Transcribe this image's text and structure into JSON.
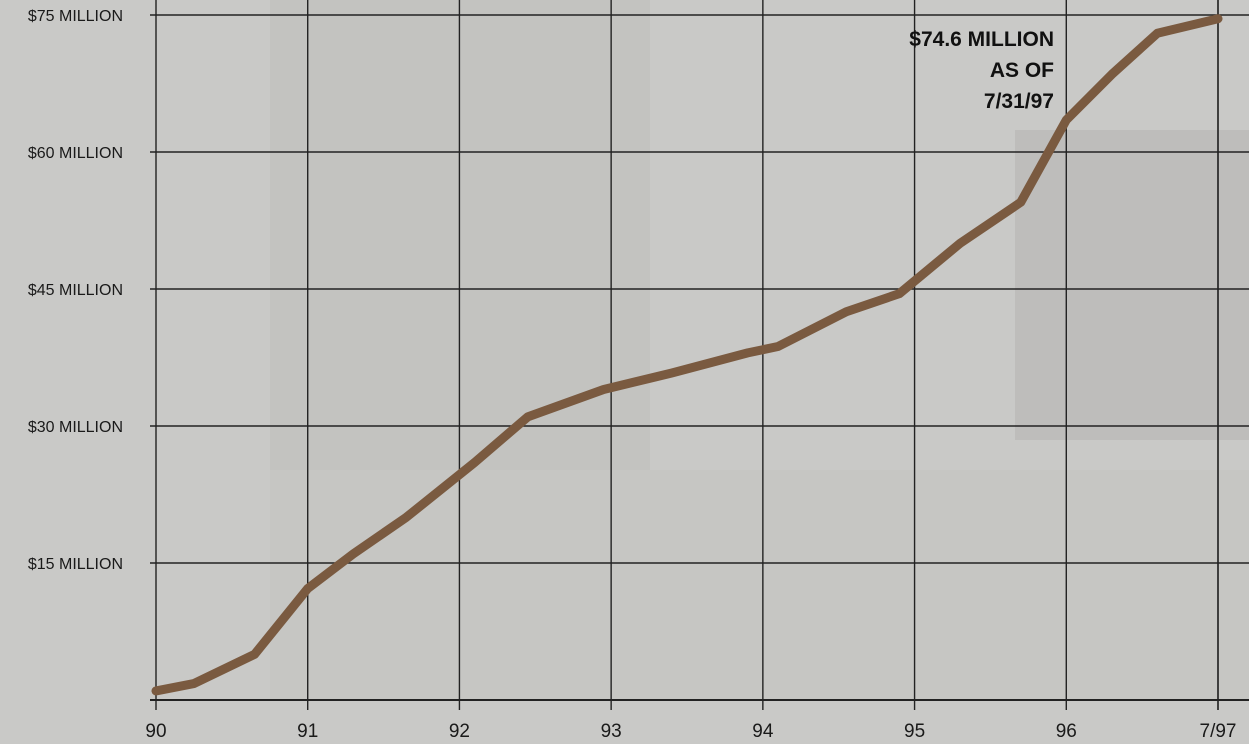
{
  "chart_data": {
    "type": "line",
    "title": "",
    "xlabel": "",
    "ylabel": "",
    "y_tick_labels": [
      "$15 MILLION",
      "$30 MILLION",
      "$45 MILLION",
      "$60 MILLION",
      "$75 MILLION"
    ],
    "y_ticks": [
      15,
      30,
      45,
      60,
      75
    ],
    "ylim": [
      0,
      75
    ],
    "x_tick_labels": [
      "90",
      "91",
      "92",
      "93",
      "94",
      "95",
      "96",
      "7/97"
    ],
    "x_ticks": [
      1990,
      1991,
      1992,
      1993,
      1994,
      1995,
      1996,
      1997
    ],
    "xlim": [
      1989.92,
      1997.6
    ],
    "grid": true,
    "series": [
      {
        "color": "#7a5a40",
        "x": [
          1990.0,
          1990.25,
          1990.65,
          1991.0,
          1991.3,
          1991.65,
          1992.1,
          1992.45,
          1992.95,
          1993.4,
          1993.9,
          1994.1,
          1994.55,
          1994.9,
          1995.3,
          1995.7,
          1996.0,
          1996.3,
          1996.6,
          1997.0
        ],
        "y": [
          1.0,
          1.8,
          5.0,
          12.2,
          16.0,
          20.0,
          26.0,
          31.0,
          34.0,
          35.8,
          38.0,
          38.7,
          42.5,
          44.5,
          50.0,
          54.5,
          63.5,
          68.5,
          73.0,
          74.6
        ]
      }
    ],
    "annotations": [
      {
        "lines": [
          "$74.6 MILLION",
          "AS OF",
          "7/31/97"
        ],
        "x": 1996.0,
        "y": 74.6
      }
    ]
  }
}
